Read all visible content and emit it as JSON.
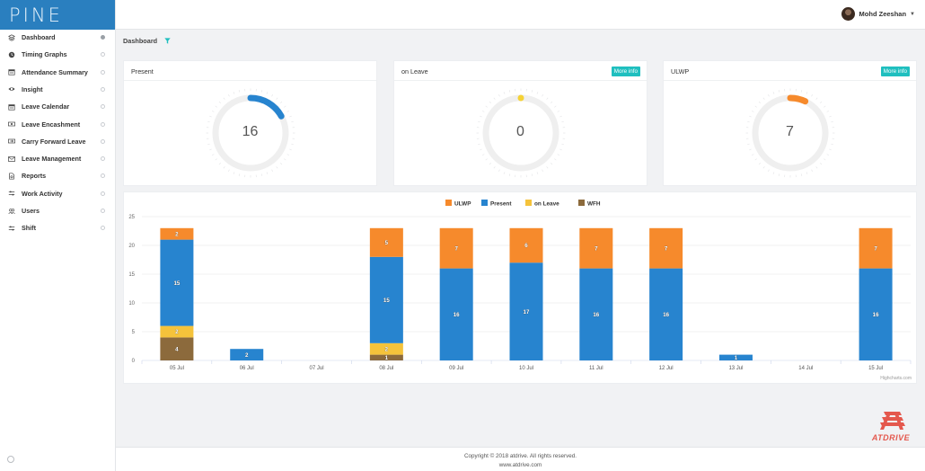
{
  "app": {
    "logo_text": "PINE"
  },
  "sidebar": {
    "items": [
      {
        "label": "Dashboard",
        "icon": "layers-icon",
        "active": true
      },
      {
        "label": "Timing Graphs",
        "icon": "clock-icon"
      },
      {
        "label": "Attendance Summary",
        "icon": "calendar-icon"
      },
      {
        "label": "Insight",
        "icon": "eye-icon"
      },
      {
        "label": "Leave Calendar",
        "icon": "calendar-icon"
      },
      {
        "label": "Leave Encashment",
        "icon": "money-icon"
      },
      {
        "label": "Carry Forward Leave",
        "icon": "forward-icon"
      },
      {
        "label": "Leave Management",
        "icon": "mail-icon"
      },
      {
        "label": "Reports",
        "icon": "report-icon"
      },
      {
        "label": "Work Activity",
        "icon": "sliders-icon"
      },
      {
        "label": "Users",
        "icon": "users-icon"
      },
      {
        "label": "Shift",
        "icon": "sliders-icon"
      }
    ]
  },
  "header": {
    "user_name": "Mohd Zeeshan"
  },
  "breadcrumb": {
    "title": "Dashboard"
  },
  "cards": [
    {
      "title": "Present",
      "value": "16",
      "button": "",
      "fraction": 0.17,
      "color": "#2784cf"
    },
    {
      "title": "on Leave",
      "value": "0",
      "button": "More info",
      "fraction": 0.0,
      "color": "#f5d236"
    },
    {
      "title": "ULWP",
      "value": "7",
      "button": "More info",
      "fraction": 0.07,
      "color": "#f68a2c"
    }
  ],
  "chart_data": {
    "type": "bar",
    "stacked": true,
    "categories": [
      "05 Jul",
      "06 Jul",
      "07 Jul",
      "08 Jul",
      "09 Jul",
      "10 Jul",
      "11 Jul",
      "12 Jul",
      "13 Jul",
      "14 Jul",
      "15 Jul"
    ],
    "series": [
      {
        "name": "ULWP",
        "color": "#f68a2c",
        "values": [
          2,
          0,
          0,
          5,
          7,
          6,
          7,
          7,
          0,
          0,
          7
        ]
      },
      {
        "name": "Present",
        "color": "#2784cf",
        "values": [
          15,
          2,
          0,
          15,
          16,
          17,
          16,
          16,
          1,
          0,
          16
        ]
      },
      {
        "name": "on Leave",
        "color": "#f5c33b",
        "values": [
          2,
          0,
          0,
          2,
          0,
          0,
          0,
          0,
          0,
          0,
          0
        ]
      },
      {
        "name": "WFH",
        "color": "#8c6a3c",
        "values": [
          4,
          0,
          0,
          1,
          0,
          0,
          0,
          0,
          0,
          0,
          0
        ]
      }
    ],
    "yticks": [
      "0",
      "5",
      "10",
      "15",
      "20",
      "25"
    ],
    "ylim": [
      0,
      25
    ],
    "grid": true,
    "legend": "top-center",
    "credit": "Highcharts.com"
  },
  "brand": {
    "text": "ATDRIVE"
  },
  "footer": {
    "copyright": "Copyright © 2018 atdrive. All rights reserved.",
    "website": "www.atdrive.com"
  }
}
